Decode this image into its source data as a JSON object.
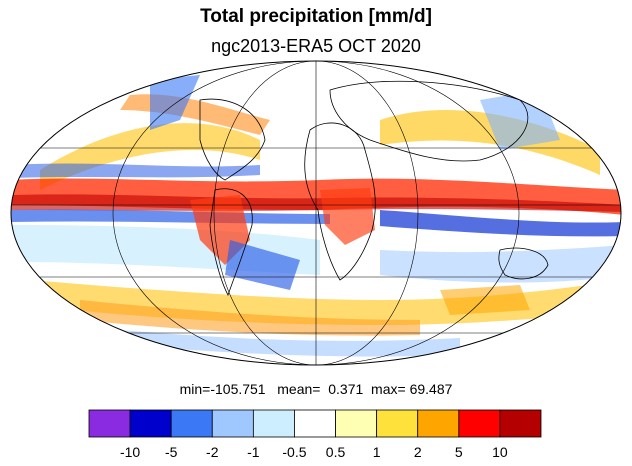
{
  "title": "Total precipitation [mm/d]",
  "subtitle": "ngc2013-ERA5 OCT 2020",
  "stats_line": "min=-105.751   mean=  0.371  max= 69.487",
  "colorbar": {
    "colors": [
      "#8a2be2",
      "#0000cd",
      "#3a78f5",
      "#9ec8ff",
      "#cdeeff",
      "#ffffff",
      "#ffffb4",
      "#ffe13c",
      "#ffa500",
      "#ff0000",
      "#b40000"
    ],
    "tick_labels": [
      "-10",
      "-5",
      "-2",
      "-1",
      "-0.5",
      "0.5",
      "1",
      "2",
      "5",
      "10"
    ]
  }
}
